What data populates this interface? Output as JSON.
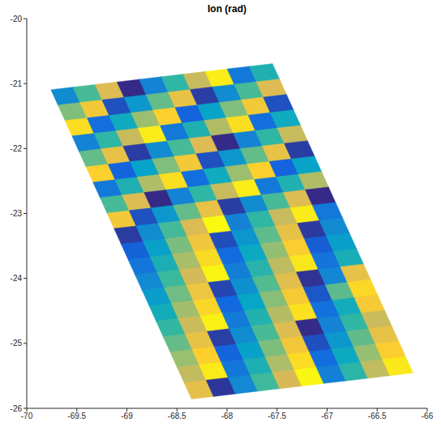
{
  "chart_data": {
    "type": "heatmap",
    "title": "Ion (rad)",
    "xlim": [
      -70,
      -66
    ],
    "xticks": [
      -70,
      -69.5,
      -69,
      -68.5,
      -68,
      -67.5,
      -67,
      -66.5,
      -66
    ],
    "ylim": [
      -26,
      -20
    ],
    "yticks": [
      -26,
      -25,
      -24,
      -23,
      -22,
      -21,
      -20
    ],
    "grid": false,
    "color_range": [
      -3.14,
      3.14
    ],
    "cells": [
      [
        [
          -69.605,
          -21.199,
          -1.38
        ],
        [
          -69.385,
          -21.159,
          0.13
        ],
        [
          -69.165,
          -21.119,
          1.63
        ],
        [
          -68.945,
          -21.079,
          -3.14
        ],
        [
          -68.725,
          -21.039,
          -1.63
        ],
        [
          -68.505,
          -20.999,
          -0.13
        ],
        [
          -68.285,
          -20.959,
          1.38
        ],
        [
          -68.065,
          -20.919,
          2.89
        ],
        [
          -67.845,
          -20.879,
          -1.88
        ],
        [
          -67.625,
          -20.839,
          -0.38
        ]
      ],
      [
        [
          -69.535,
          -21.436,
          0.63
        ],
        [
          -69.315,
          -21.396,
          2.14
        ],
        [
          -69.095,
          -21.356,
          -2.64
        ],
        [
          -68.875,
          -21.316,
          -1.13
        ],
        [
          -68.655,
          -21.276,
          0.38
        ],
        [
          -68.435,
          -21.236,
          1.88
        ],
        [
          -68.215,
          -21.196,
          -2.89
        ],
        [
          -67.995,
          -21.156,
          -1.38
        ],
        [
          -67.775,
          -21.116,
          0.13
        ],
        [
          -67.555,
          -21.076,
          1.63
        ]
      ],
      [
        [
          -69.465,
          -21.674,
          2.64
        ],
        [
          -69.245,
          -21.634,
          -2.14
        ],
        [
          -69.025,
          -21.594,
          -0.63
        ],
        [
          -68.805,
          -21.554,
          0.88
        ],
        [
          -68.585,
          -21.514,
          2.39
        ],
        [
          -68.365,
          -21.474,
          -2.39
        ],
        [
          -68.145,
          -21.434,
          -0.88
        ],
        [
          -67.925,
          -21.394,
          0.63
        ],
        [
          -67.705,
          -21.354,
          2.14
        ],
        [
          -67.485,
          -21.314,
          -2.64
        ]
      ],
      [
        [
          -69.395,
          -21.911,
          -1.63
        ],
        [
          -69.175,
          -21.871,
          -0.13
        ],
        [
          -68.955,
          -21.831,
          1.38
        ],
        [
          -68.735,
          -21.791,
          2.89
        ],
        [
          -68.515,
          -21.751,
          -1.88
        ],
        [
          -68.295,
          -21.711,
          -0.38
        ],
        [
          -68.075,
          -21.671,
          1.13
        ],
        [
          -67.855,
          -21.631,
          2.64
        ],
        [
          -67.635,
          -21.591,
          -2.14
        ],
        [
          -67.415,
          -21.551,
          -0.63
        ]
      ],
      [
        [
          -69.325,
          -22.149,
          0.38
        ],
        [
          -69.105,
          -22.109,
          1.88
        ],
        [
          -68.885,
          -22.069,
          -2.89
        ],
        [
          -68.665,
          -22.029,
          -1.38
        ],
        [
          -68.445,
          -21.989,
          0.13
        ],
        [
          -68.225,
          -21.949,
          1.63
        ],
        [
          -68.005,
          -21.909,
          -3.14
        ],
        [
          -67.785,
          -21.869,
          -1.63
        ],
        [
          -67.565,
          -21.829,
          -0.13
        ],
        [
          -67.345,
          -21.789,
          1.38
        ]
      ],
      [
        [
          -69.255,
          -22.386,
          2.39
        ],
        [
          -69.035,
          -22.346,
          -2.39
        ],
        [
          -68.815,
          -22.306,
          -0.88
        ],
        [
          -68.595,
          -22.266,
          0.63
        ],
        [
          -68.375,
          -22.226,
          2.14
        ],
        [
          -68.155,
          -22.186,
          -2.64
        ],
        [
          -67.935,
          -22.146,
          -1.13
        ],
        [
          -67.715,
          -22.106,
          0.38
        ],
        [
          -67.495,
          -22.066,
          1.88
        ],
        [
          -67.275,
          -22.026,
          -2.89
        ]
      ],
      [
        [
          -69.185,
          -22.624,
          -1.88
        ],
        [
          -68.965,
          -22.584,
          -0.38
        ],
        [
          -68.745,
          -22.544,
          1.13
        ],
        [
          -68.525,
          -22.504,
          2.64
        ],
        [
          -68.305,
          -22.464,
          -2.14
        ],
        [
          -68.085,
          -22.424,
          -0.63
        ],
        [
          -67.865,
          -22.384,
          0.88
        ],
        [
          -67.645,
          -22.344,
          2.39
        ],
        [
          -67.425,
          -22.304,
          -2.39
        ],
        [
          -67.205,
          -22.264,
          -0.88
        ]
      ],
      [
        [
          -69.115,
          -22.861,
          0.13
        ],
        [
          -68.895,
          -22.821,
          1.63
        ],
        [
          -68.675,
          -22.781,
          -3.14
        ],
        [
          -68.455,
          -22.741,
          -1.63
        ],
        [
          -68.235,
          -22.701,
          -0.13
        ],
        [
          -68.015,
          -22.661,
          1.38
        ],
        [
          -67.795,
          -22.621,
          2.89
        ],
        [
          -67.575,
          -22.581,
          -1.88
        ],
        [
          -67.355,
          -22.541,
          -0.38
        ],
        [
          -67.135,
          -22.501,
          1.13
        ]
      ],
      [
        [
          -69.045,
          -23.099,
          2.14
        ],
        [
          -68.825,
          -23.059,
          -2.64
        ],
        [
          -68.605,
          -23.019,
          -1.13
        ],
        [
          -68.385,
          -22.979,
          0.38
        ],
        [
          -68.165,
          -22.939,
          1.88
        ],
        [
          -67.945,
          -22.899,
          -2.89
        ],
        [
          -67.725,
          -22.859,
          -1.38
        ],
        [
          -67.505,
          -22.819,
          0.13
        ],
        [
          -67.285,
          -22.779,
          1.63
        ],
        [
          -67.065,
          -22.739,
          -3.14
        ]
      ],
      [
        [
          -68.975,
          -23.336,
          -2.91
        ],
        [
          -68.755,
          -23.296,
          -1.4
        ],
        [
          -68.535,
          -23.256,
          0.11
        ],
        [
          -68.315,
          -23.216,
          1.62
        ],
        [
          -68.095,
          -23.176,
          3.13
        ],
        [
          -67.875,
          -23.136,
          -1.65
        ],
        [
          -67.655,
          -23.096,
          -0.14
        ],
        [
          -67.435,
          -23.056,
          1.37
        ],
        [
          -67.215,
          -23.016,
          2.87
        ],
        [
          -66.995,
          -22.976,
          -1.9
        ]
      ],
      [
        [
          -68.905,
          -23.574,
          -2.43
        ],
        [
          -68.685,
          -23.534,
          -0.93
        ],
        [
          -68.465,
          -23.494,
          0.58
        ],
        [
          -68.245,
          -23.454,
          2.09
        ],
        [
          -68.025,
          -23.414,
          -2.69
        ],
        [
          -67.805,
          -23.374,
          -1.18
        ],
        [
          -67.585,
          -23.334,
          0.33
        ],
        [
          -67.365,
          -23.294,
          1.84
        ],
        [
          -67.145,
          -23.254,
          -2.94
        ],
        [
          -66.925,
          -23.214,
          -1.43
        ]
      ],
      [
        [
          -68.835,
          -23.811,
          -1.96
        ],
        [
          -68.615,
          -23.771,
          -0.46
        ],
        [
          -68.395,
          -23.731,
          1.05
        ],
        [
          -68.175,
          -23.691,
          2.56
        ],
        [
          -67.955,
          -23.651,
          -2.22
        ],
        [
          -67.735,
          -23.611,
          -0.71
        ],
        [
          -67.515,
          -23.571,
          0.8
        ],
        [
          -67.295,
          -23.531,
          2.31
        ],
        [
          -67.075,
          -23.491,
          -2.47
        ],
        [
          -66.855,
          -23.451,
          -0.96
        ]
      ],
      [
        [
          -68.765,
          -24.049,
          -1.49
        ],
        [
          -68.545,
          -24.009,
          0.02
        ],
        [
          -68.325,
          -23.969,
          1.52
        ],
        [
          -68.105,
          -23.929,
          3.03
        ],
        [
          -67.885,
          -23.889,
          -1.74
        ],
        [
          -67.665,
          -23.849,
          -0.24
        ],
        [
          -67.445,
          -23.809,
          1.27
        ],
        [
          -67.225,
          -23.769,
          2.78
        ],
        [
          -67.005,
          -23.729,
          -2.0
        ],
        [
          -66.785,
          -23.689,
          -0.49
        ]
      ],
      [
        [
          -68.695,
          -24.286,
          -1.02
        ],
        [
          -68.475,
          -24.246,
          0.49
        ],
        [
          -68.255,
          -24.206,
          1.99
        ],
        [
          -68.035,
          -24.166,
          -2.78
        ],
        [
          -67.815,
          -24.126,
          -1.27
        ],
        [
          -67.595,
          -24.086,
          0.24
        ],
        [
          -67.375,
          -24.046,
          1.74
        ],
        [
          -67.155,
          -24.006,
          -3.03
        ],
        [
          -66.935,
          -23.966,
          -1.52
        ],
        [
          -66.715,
          -23.926,
          1.88
        ]
      ],
      [
        [
          -68.625,
          -24.524,
          -0.55
        ],
        [
          -68.405,
          -24.484,
          0.96
        ],
        [
          -68.185,
          -24.444,
          2.47
        ],
        [
          -67.965,
          -24.404,
          -2.31
        ],
        [
          -67.745,
          -24.364,
          -0.8
        ],
        [
          -67.525,
          -24.324,
          0.71
        ],
        [
          -67.305,
          -24.284,
          2.21
        ],
        [
          -67.085,
          -24.244,
          -2.56
        ],
        [
          -66.865,
          -24.204,
          0.31
        ],
        [
          -66.645,
          -24.164,
          2.51
        ]
      ],
      [
        [
          -68.555,
          -24.761,
          -0.08
        ],
        [
          -68.335,
          -24.721,
          1.43
        ],
        [
          -68.115,
          -24.681,
          2.94
        ],
        [
          -67.895,
          -24.641,
          -1.84
        ],
        [
          -67.675,
          -24.601,
          -0.33
        ],
        [
          -67.455,
          -24.561,
          1.18
        ],
        [
          -67.235,
          -24.521,
          2.69
        ],
        [
          -67.015,
          -24.481,
          -2.09
        ],
        [
          -66.795,
          -24.441,
          -0.58
        ],
        [
          -66.575,
          -24.401,
          2.2
        ]
      ],
      [
        [
          -68.485,
          -24.999,
          0.39
        ],
        [
          -68.265,
          -24.959,
          1.9
        ],
        [
          -68.045,
          -24.919,
          -2.87
        ],
        [
          -67.825,
          -24.879,
          -1.37
        ],
        [
          -67.605,
          -24.839,
          0.14
        ],
        [
          -67.385,
          -24.799,
          1.65
        ],
        [
          -67.165,
          -24.759,
          -3.13
        ],
        [
          -66.945,
          -24.719,
          -1.62
        ],
        [
          -66.725,
          -24.679,
          -0.11
        ],
        [
          -66.505,
          -24.639,
          1.4
        ]
      ],
      [
        [
          -68.415,
          -25.236,
          0.86
        ],
        [
          -68.195,
          -25.196,
          2.37
        ],
        [
          -67.975,
          -25.156,
          -2.4
        ],
        [
          -67.755,
          -25.116,
          -0.9
        ],
        [
          -67.535,
          -25.076,
          0.61
        ],
        [
          -67.315,
          -25.036,
          2.12
        ],
        [
          -67.095,
          -24.996,
          -2.65
        ],
        [
          -66.875,
          -24.956,
          -1.15
        ],
        [
          -66.655,
          -24.916,
          0.36
        ],
        [
          -66.435,
          -24.876,
          1.87
        ]
      ],
      [
        [
          -68.345,
          -25.474,
          1.33
        ],
        [
          -68.125,
          -25.434,
          2.84
        ],
        [
          -67.905,
          -25.394,
          -1.93
        ],
        [
          -67.685,
          -25.354,
          -0.42
        ],
        [
          -67.465,
          -25.314,
          1.08
        ],
        [
          -67.245,
          -25.274,
          2.59
        ],
        [
          -67.025,
          -25.234,
          -2.18
        ],
        [
          -66.805,
          -25.194,
          -0.68
        ],
        [
          -66.585,
          -25.154,
          0.83
        ],
        [
          -66.365,
          -25.114,
          2.34
        ]
      ],
      [
        [
          -68.275,
          -25.711,
          1.81
        ],
        [
          -68.055,
          -25.671,
          -2.97
        ],
        [
          -67.835,
          -25.631,
          -1.46
        ],
        [
          -67.615,
          -25.591,
          0.05
        ],
        [
          -67.395,
          -25.551,
          1.55
        ],
        [
          -67.175,
          -25.511,
          3.06
        ],
        [
          -66.955,
          -25.471,
          -1.71
        ],
        [
          -66.735,
          -25.431,
          -0.2
        ],
        [
          -66.515,
          -25.391,
          1.3
        ],
        [
          -66.295,
          -25.351,
          2.81
        ]
      ]
    ]
  }
}
